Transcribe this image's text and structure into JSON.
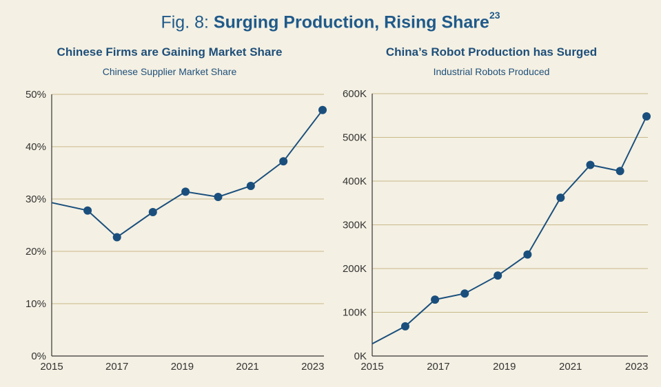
{
  "figure": {
    "prefix": "Fig. 8:",
    "title": "Surging Production, Rising Share",
    "superscript": "23"
  },
  "colors": {
    "background": "#f4f0e3",
    "line": "#1a4f7d",
    "gridline": "#c9b98a",
    "axis": "#333333",
    "title": "#1e4f7a"
  },
  "chart_data": [
    {
      "type": "line",
      "title": "Chinese Firms are Gaining Market Share",
      "subtitle": "Chinese Supplier Market Share",
      "x_ticks": [
        "2015",
        "2017",
        "2019",
        "2021",
        "2023"
      ],
      "y_ticks": [
        "0%",
        "10%",
        "20%",
        "30%",
        "40%",
        "50%"
      ],
      "ylim": [
        0,
        50
      ],
      "xlim": [
        2015,
        2023.3
      ],
      "grid": true,
      "series": [
        {
          "x": [
            2015,
            2016.1,
            2017,
            2018.1,
            2019.1,
            2020.1,
            2021.1,
            2022.1,
            2023.3
          ],
          "y": [
            29.3,
            27.8,
            22.7,
            27.5,
            31.4,
            30.4,
            32.5,
            37.2,
            47.0
          ],
          "markers": [
            false,
            true,
            true,
            true,
            true,
            true,
            true,
            true,
            true
          ]
        }
      ]
    },
    {
      "type": "line",
      "title": "China’s Robot Production has Surged",
      "subtitle": "Industrial Robots Produced",
      "x_ticks": [
        "2015",
        "2017",
        "2019",
        "2021",
        "2023"
      ],
      "y_ticks": [
        "0K",
        "100K",
        "200K",
        "300K",
        "400K",
        "500K",
        "600K"
      ],
      "ylim": [
        0,
        600
      ],
      "xlim": [
        2015,
        2023.3
      ],
      "grid": true,
      "series": [
        {
          "x": [
            2015,
            2016,
            2016.9,
            2017.8,
            2018.8,
            2019.7,
            2020.7,
            2021.6,
            2022.5,
            2023.3
          ],
          "y": [
            28,
            68,
            129,
            143,
            184,
            232,
            362,
            437,
            423,
            548
          ],
          "markers": [
            false,
            true,
            true,
            true,
            true,
            true,
            true,
            true,
            true,
            true
          ]
        }
      ]
    }
  ]
}
